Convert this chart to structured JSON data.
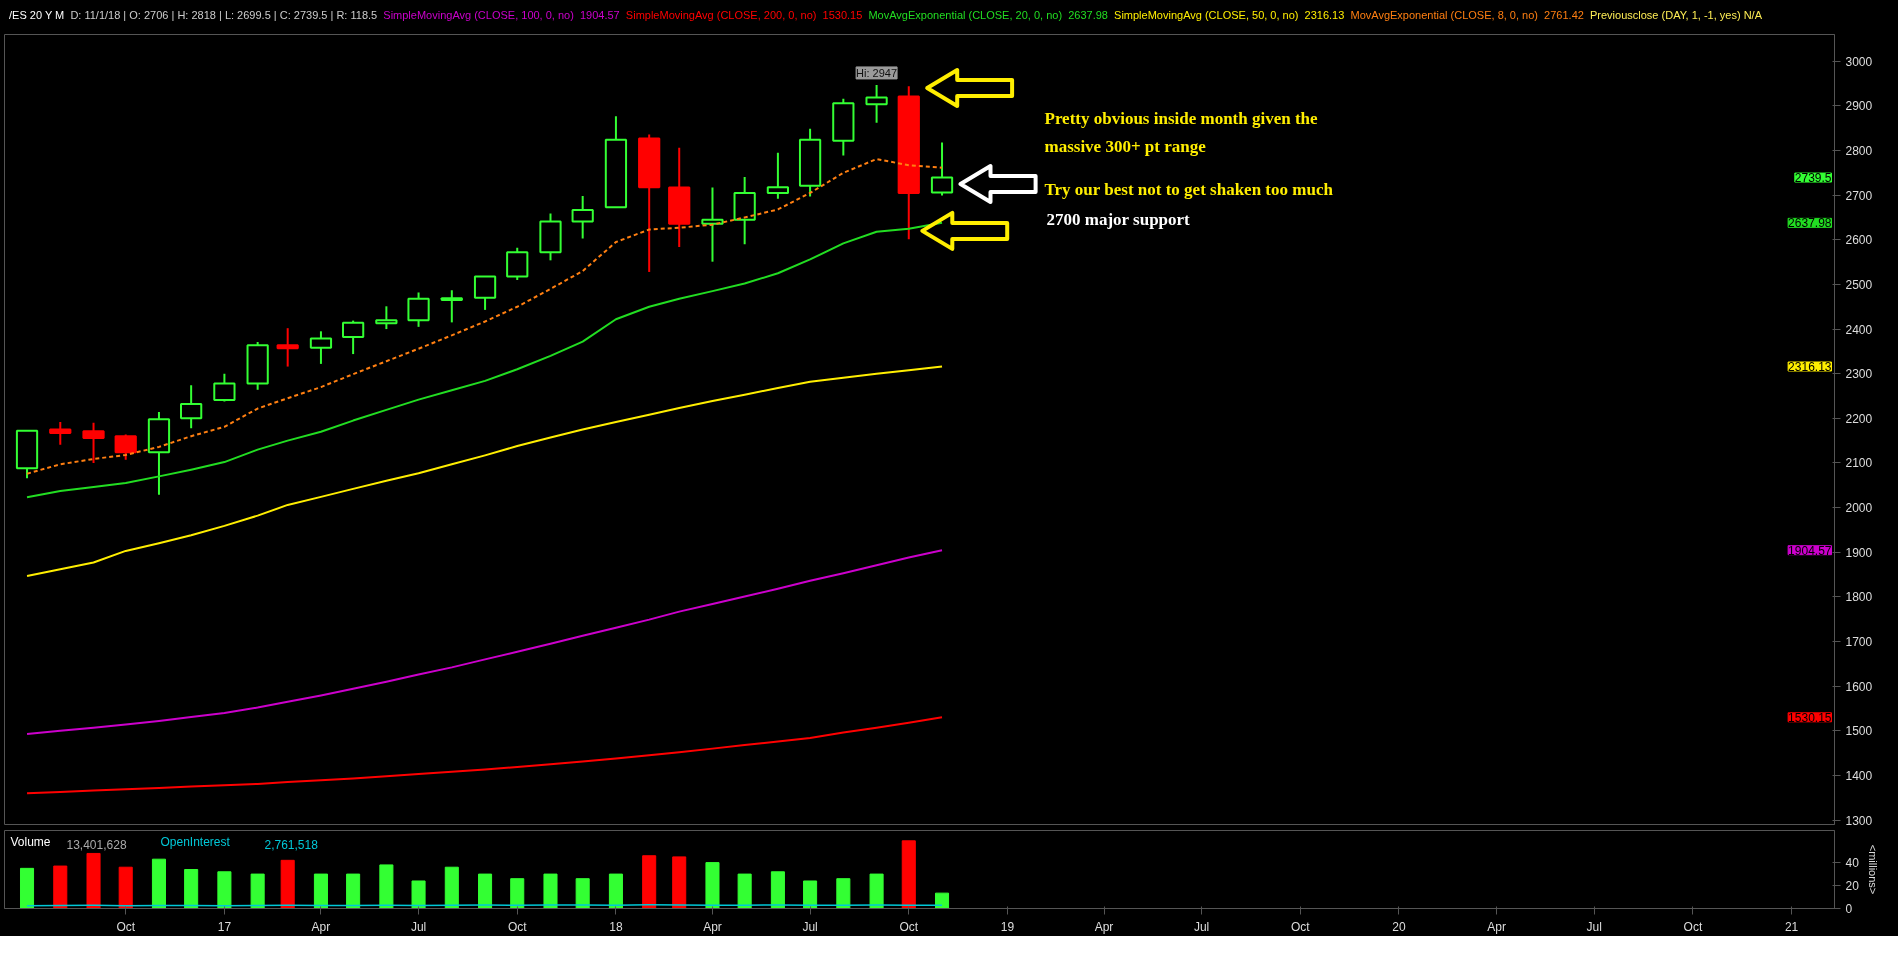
{
  "chart_data": [
    {
      "type": "candlestick",
      "title": "/ES 20 Y M",
      "subtitle": "D: 11/1/18 | O: 2706 | H: 2818 | L: 2699.5 | C: 2739.5 | R: 118.5",
      "x": [
        "2016-07",
        "2016-08",
        "2016-09",
        "2016-10",
        "2016-11",
        "2016-12",
        "2017-01",
        "2017-02",
        "2017-03",
        "2017-04",
        "2017-05",
        "2017-06",
        "2017-07",
        "2017-08",
        "2017-09",
        "2017-10",
        "2017-11",
        "2017-12",
        "2018-01",
        "2018-02",
        "2018-03",
        "2018-04",
        "2018-05",
        "2018-06",
        "2018-07",
        "2018-08",
        "2018-09",
        "2018-10",
        "2018-11"
      ],
      "ohlc": [
        [
          2088,
          2174,
          2066,
          2172
        ],
        [
          2175,
          2192,
          2141,
          2167
        ],
        [
          2171,
          2190,
          2100,
          2156
        ],
        [
          2160,
          2164,
          2107,
          2124
        ],
        [
          2124,
          2214,
          2029,
          2198
        ],
        [
          2200,
          2274,
          2178,
          2232
        ],
        [
          2241,
          2300,
          2238,
          2278
        ],
        [
          2278,
          2371,
          2264,
          2364
        ],
        [
          2364,
          2402,
          2316,
          2357
        ],
        [
          2358,
          2395,
          2322,
          2379
        ],
        [
          2382,
          2419,
          2344,
          2414
        ],
        [
          2413,
          2451,
          2400,
          2420
        ],
        [
          2420,
          2482,
          2405,
          2468
        ],
        [
          2465,
          2487,
          2415,
          2469
        ],
        [
          2470,
          2518,
          2443,
          2518
        ],
        [
          2518,
          2582,
          2510,
          2572
        ],
        [
          2572,
          2659,
          2554,
          2641
        ],
        [
          2641,
          2698,
          2603,
          2667
        ],
        [
          2673,
          2877,
          2673,
          2824
        ],
        [
          2827,
          2836,
          2528,
          2718
        ],
        [
          2717,
          2806,
          2584,
          2636
        ],
        [
          2636,
          2717,
          2551,
          2645
        ],
        [
          2645,
          2741,
          2590,
          2705
        ],
        [
          2705,
          2795,
          2692,
          2718
        ],
        [
          2721,
          2849,
          2697,
          2824
        ],
        [
          2822,
          2916,
          2789,
          2906
        ],
        [
          2904,
          2947,
          2862,
          2919
        ],
        [
          2921,
          2944,
          2601,
          2705
        ],
        [
          2706,
          2818,
          2699.5,
          2739.5
        ]
      ],
      "colors": [
        "#33ff33",
        "#ff0000",
        "#ff0000",
        "#ff0000",
        "#33ff33",
        "#33ff33",
        "#33ff33",
        "#33ff33",
        "#ff0000",
        "#33ff33",
        "#33ff33",
        "#33ff33",
        "#33ff33",
        "#33ff33",
        "#33ff33",
        "#33ff33",
        "#33ff33",
        "#33ff33",
        "#33ff33",
        "#ff0000",
        "#ff0000",
        "#33ff33",
        "#33ff33",
        "#33ff33",
        "#33ff33",
        "#33ff33",
        "#33ff33",
        "#ff0000",
        "#33ff33"
      ],
      "series": [
        {
          "name": "SimpleMovingAvg (CLOSE, 100, 0, no)  1904.57",
          "type": "line",
          "color": "#cc00cc",
          "values": [
            1493,
            1500,
            1507,
            1514,
            1522,
            1531,
            1540,
            1552,
            1565,
            1579,
            1594,
            1610,
            1626,
            1642,
            1660,
            1677,
            1695,
            1713,
            1731,
            1749,
            1767,
            1784,
            1801,
            1818,
            1836,
            1853,
            1871,
            1888,
            1904.57
          ]
        },
        {
          "name": "SimpleMovingAvg (CLOSE, 200, 0, no)  1530.15",
          "type": "line",
          "color": "#ff0000",
          "values": [
            1360,
            1363,
            1366,
            1369,
            1372,
            1375,
            1378,
            1381,
            1385,
            1389,
            1393,
            1398,
            1403,
            1408,
            1413,
            1419,
            1425,
            1431,
            1438,
            1445,
            1452,
            1460,
            1468,
            1476,
            1484,
            1496,
            1507,
            1518,
            1530.15
          ]
        },
        {
          "name": "MovAvgExponential (CLOSE, 20, 0, no)  2637.98",
          "type": "line",
          "color": "#22dd22",
          "values": [
            2023,
            2037,
            2046,
            2055,
            2070,
            2085,
            2102,
            2130,
            2150,
            2170,
            2195,
            2219,
            2242,
            2263,
            2284,
            2310,
            2340,
            2372,
            2422,
            2450,
            2468,
            2485,
            2502,
            2525,
            2556,
            2592,
            2618,
            2625,
            2637.98
          ]
        },
        {
          "name": "SimpleMovingAvg (CLOSE, 50, 0, no)  2316.13",
          "type": "line",
          "color": "#ffee00",
          "values": [
            1847,
            1862,
            1877,
            1903,
            1920,
            1938,
            1959,
            1982,
            2006,
            2024,
            2042,
            2060,
            2077,
            2097,
            2117,
            2138,
            2157,
            2175,
            2192,
            2208,
            2223,
            2239,
            2253,
            2268,
            2282,
            2291,
            2300,
            2308,
            2316.13
          ]
        },
        {
          "name": "MovAvgExponential (CLOSE, 8, 0, no)  2761.42",
          "type": "line",
          "color": "#ff7f11",
          "line_style": "dashed",
          "values": [
            2076,
            2097,
            2109,
            2118,
            2136,
            2160,
            2181,
            2222,
            2245,
            2270,
            2299,
            2328,
            2356,
            2386,
            2417,
            2450,
            2490,
            2530,
            2595,
            2623,
            2627,
            2634,
            2650,
            2668,
            2705,
            2750,
            2781,
            2767,
            2761.42
          ]
        }
      ],
      "xlim": [
        "2016-06-10",
        "2021-02-10"
      ],
      "ylim": [
        1290,
        3060
      ],
      "yticks": [
        1300,
        1400,
        1500,
        1600,
        1700,
        1800,
        1900,
        2000,
        2100,
        2200,
        2300,
        2400,
        2500,
        2600,
        2700,
        2800,
        2900,
        3000
      ],
      "tick_labels": "y",
      "legend": "top",
      "annotations": [
        "Previousclose (DAY, 1, -1, yes) N/A",
        "Pretty obvious inside month given the\nmassive 300+ pt range",
        "Try our best not to get shaken too much",
        "2700 major support",
        "2739.5",
        "1904.57",
        "1530.15",
        "2637.98",
        "2316.13",
        {
          "text": "Hi: 2947",
          "x": "2018-09",
          "y": 2947
        }
      ]
    },
    {
      "type": "bar",
      "ylabel": "<millions>",
      "x": [
        "2016-07",
        "2016-08",
        "2016-09",
        "2016-10",
        "2016-11",
        "2016-12",
        "2017-01",
        "2017-02",
        "2017-03",
        "2017-04",
        "2017-05",
        "2017-06",
        "2017-07",
        "2017-08",
        "2017-09",
        "2017-10",
        "2017-11",
        "2017-12",
        "2018-01",
        "2018-02",
        "2018-03",
        "2018-04",
        "2018-05",
        "2018-06",
        "2018-07",
        "2018-08",
        "2018-09",
        "2018-10",
        "2018-11"
      ],
      "series": [
        {
          "name": "Volume",
          "colors": [
            "#33ff33",
            "#ff0000",
            "#ff0000",
            "#ff0000",
            "#33ff33",
            "#33ff33",
            "#33ff33",
            "#33ff33",
            "#ff0000",
            "#33ff33",
            "#33ff33",
            "#33ff33",
            "#33ff33",
            "#33ff33",
            "#33ff33",
            "#33ff33",
            "#33ff33",
            "#33ff33",
            "#33ff33",
            "#ff0000",
            "#ff0000",
            "#33ff33",
            "#33ff33",
            "#33ff33",
            "#33ff33",
            "#33ff33",
            "#33ff33",
            "#ff0000",
            "#33ff33"
          ],
          "values": [
            35,
            37,
            48,
            36,
            43,
            34,
            32,
            30,
            42,
            30,
            30,
            38,
            24,
            36,
            30,
            26,
            30,
            26,
            30,
            46,
            45,
            40,
            30,
            32,
            24,
            26,
            30,
            59,
            13.4
          ]
        },
        {
          "name": "OpenInterest",
          "type": "line",
          "color": "#00c8d8",
          "values": [
            2.5,
            2.6,
            2.8,
            2.5,
            2.6,
            2.7,
            2.5,
            2.6,
            2.8,
            2.6,
            2.7,
            2.9,
            2.7,
            2.8,
            3,
            2.8,
            3,
            3.1,
            2.9,
            3.2,
            3,
            2.8,
            2.9,
            3,
            2.8,
            2.9,
            3,
            2.8,
            2.761518
          ]
        }
      ],
      "xlim": [
        "2016-06-10",
        "2021-02-10"
      ],
      "xticks": [
        {
          "value": "2016-10",
          "label": "Oct"
        },
        {
          "value": "2017-01",
          "label": "17"
        },
        {
          "value": "2017-04",
          "label": "Apr"
        },
        {
          "value": "2017-07",
          "label": "Jul"
        },
        {
          "value": "2017-10",
          "label": "Oct"
        },
        {
          "value": "2018-01",
          "label": "18"
        },
        {
          "value": "2018-04",
          "label": "Apr"
        },
        {
          "value": "2018-07",
          "label": "Jul"
        },
        {
          "value": "2018-10",
          "label": "Oct"
        },
        {
          "value": "2019-01",
          "label": "19"
        },
        {
          "value": "2019-04",
          "label": "Apr"
        },
        {
          "value": "2019-07",
          "label": "Jul"
        },
        {
          "value": "2019-10",
          "label": "Oct"
        },
        {
          "value": "2020-01",
          "label": "20"
        },
        {
          "value": "2020-04",
          "label": "Apr"
        },
        {
          "value": "2020-07",
          "label": "Jul"
        },
        {
          "value": "2020-10",
          "label": "Oct"
        },
        {
          "value": "2021-01",
          "label": "21"
        }
      ],
      "ylim": [
        0,
        68
      ],
      "yticks": [
        0,
        20,
        40
      ],
      "legend": "top left",
      "annotations": [
        "13,401,628",
        "2,761,518"
      ]
    }
  ]
}
